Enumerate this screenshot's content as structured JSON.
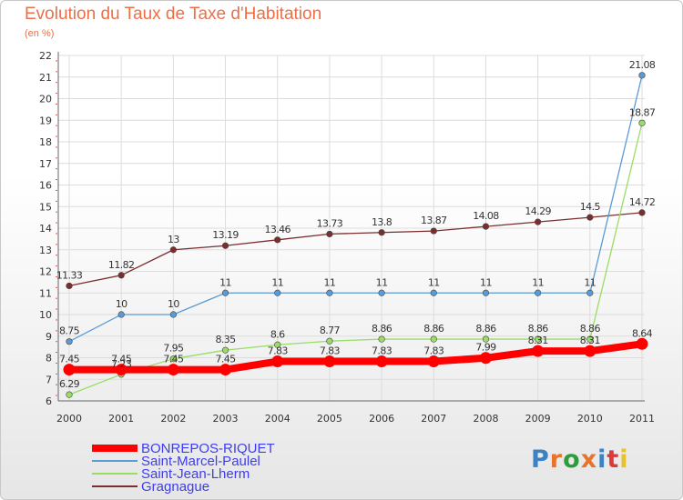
{
  "header": {
    "title": "Evolution du Taux de Taxe d'Habitation",
    "subtitle": "(en %)"
  },
  "logo": {
    "text": "Proxiti",
    "colors": [
      "#3a82c4",
      "#e8732b",
      "#2e9b3c",
      "#e8732b",
      "#3a82c4",
      "#d93b3b",
      "#e8c12b"
    ]
  },
  "chart_data": {
    "type": "line",
    "x": [
      "2000",
      "2001",
      "2002",
      "2003",
      "2004",
      "2005",
      "2006",
      "2007",
      "2008",
      "2009",
      "2010",
      "2011"
    ],
    "ylim": [
      6,
      22
    ],
    "yticks": [
      6,
      7,
      8,
      9,
      10,
      11,
      12,
      13,
      14,
      15,
      16,
      17,
      18,
      19,
      20,
      21,
      22
    ],
    "grid": true,
    "legend_position": "bottom-left",
    "series": [
      {
        "name": "BONREPOS-RIQUET",
        "color": "#ff0000",
        "values": [
          7.45,
          7.45,
          7.45,
          7.45,
          7.83,
          7.83,
          7.83,
          7.83,
          7.99,
          8.31,
          8.31,
          8.64
        ],
        "labels": [
          "7.45",
          "7.45",
          "7.45",
          "7.45",
          "7.83",
          "7.83",
          "7.83",
          "7.83",
          "7.99",
          "8.31",
          "8.31",
          "8.64"
        ]
      },
      {
        "name": "Saint-Marcel-Paulel",
        "color": "#5b9bd5",
        "values": [
          8.75,
          10,
          10,
          11,
          11,
          11,
          11,
          11,
          11,
          11,
          11,
          21.08
        ],
        "labels": [
          "8.75",
          "10",
          "10",
          "11",
          "11",
          "11",
          "11",
          "11",
          "11",
          "11",
          "11",
          "21.08"
        ]
      },
      {
        "name": "Saint-Jean-Lherm",
        "color": "#99dd66",
        "values": [
          6.29,
          7.23,
          7.95,
          8.35,
          8.6,
          8.77,
          8.86,
          8.86,
          8.86,
          8.86,
          8.86,
          18.87
        ],
        "labels": [
          "6.29",
          "7.23",
          "7.95",
          "8.35",
          "8.6",
          "8.77",
          "8.86",
          "8.86",
          "8.86",
          "8.86",
          "8.86",
          "18.87"
        ]
      },
      {
        "name": "Gragnague",
        "color": "#7a2e2e",
        "values": [
          11.33,
          11.82,
          13,
          13.19,
          13.46,
          13.73,
          13.8,
          13.87,
          14.08,
          14.29,
          14.5,
          14.72
        ],
        "labels": [
          "11.33",
          "11.82",
          "13",
          "13.19",
          "13.46",
          "13.73",
          "13.8",
          "13.87",
          "14.08",
          "14.29",
          "14.5",
          "14.72"
        ]
      }
    ]
  }
}
